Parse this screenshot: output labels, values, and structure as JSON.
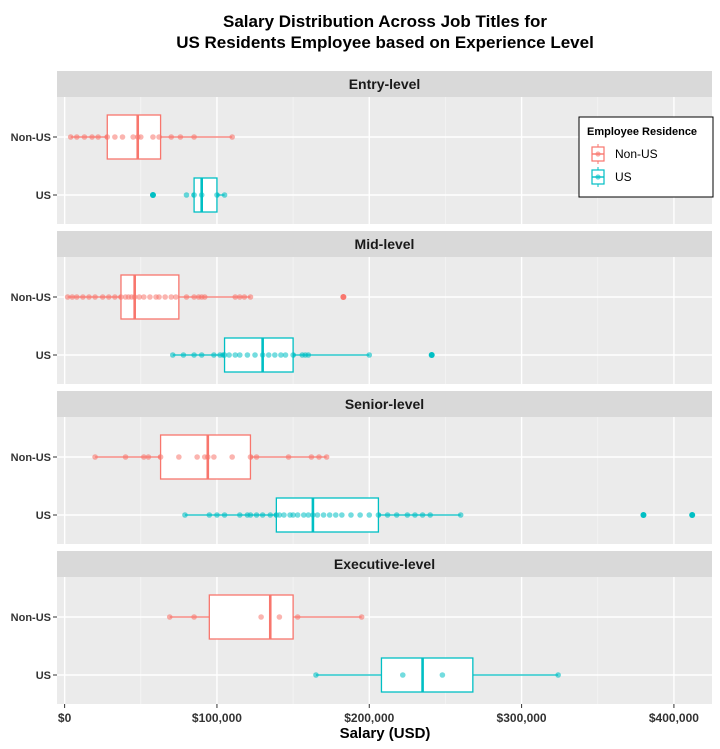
{
  "chart_data": {
    "type": "boxplot",
    "title": [
      "Salary Distribution Across Job Titles for",
      "US Residents Employee based on Experience Level"
    ],
    "xlabel": "Salary (USD)",
    "xlim": [
      -5000,
      425000
    ],
    "x_ticks": [
      0,
      100000,
      200000,
      300000,
      400000
    ],
    "x_tick_labels": [
      "$0",
      "$100,000",
      "$200,000",
      "$300,000",
      "$400,000"
    ],
    "categories": [
      "Non-US",
      "US"
    ],
    "grid": true,
    "legend": {
      "title": "Employee Residence",
      "position": "top-right",
      "entries": [
        "Non-US",
        "US"
      ]
    },
    "colors": {
      "Non-US": "#f8766d",
      "US": "#00bfc4"
    },
    "panels": [
      {
        "name": "Entry-level",
        "groups": [
          {
            "name": "Non-US",
            "whisker_low": 4000,
            "q1": 28000,
            "median": 48000,
            "q3": 63000,
            "whisker_high": 110000,
            "outliers": [],
            "points": [
              4000,
              8000,
              13000,
              18000,
              22000,
              28000,
              33000,
              38000,
              45000,
              48000,
              50000,
              58000,
              62000,
              70000,
              76000,
              85000,
              110000
            ]
          },
          {
            "name": "US",
            "whisker_low": 85000,
            "q1": 85000,
            "median": 90000,
            "q3": 100000,
            "whisker_high": 105000,
            "outliers": [
              58000
            ],
            "points": [
              58000,
              80000,
              85000,
              90000,
              100000,
              105000
            ]
          }
        ]
      },
      {
        "name": "Mid-level",
        "groups": [
          {
            "name": "Non-US",
            "whisker_low": 2000,
            "q1": 37000,
            "median": 46000,
            "q3": 75000,
            "whisker_high": 122000,
            "outliers": [
              183000
            ],
            "points": [
              2000,
              5000,
              8000,
              12000,
              16000,
              20000,
              25000,
              29000,
              33000,
              37000,
              40000,
              42000,
              44000,
              46000,
              49000,
              52000,
              56000,
              60000,
              62000,
              66000,
              70000,
              73000,
              80000,
              85000,
              88000,
              90000,
              92000,
              112000,
              115000,
              118000,
              122000,
              183000
            ]
          },
          {
            "name": "US",
            "whisker_low": 71000,
            "q1": 105000,
            "median": 130000,
            "q3": 150000,
            "whisker_high": 200000,
            "outliers": [
              241000
            ],
            "points": [
              71000,
              78000,
              85000,
              90000,
              98000,
              102000,
              104000,
              105000,
              108000,
              112000,
              115000,
              120000,
              125000,
              130000,
              134000,
              138000,
              142000,
              145000,
              150000,
              156000,
              158000,
              160000,
              200000,
              241000
            ]
          }
        ]
      },
      {
        "name": "Senior-level",
        "groups": [
          {
            "name": "Non-US",
            "whisker_low": 20000,
            "q1": 63000,
            "median": 94000,
            "q3": 122000,
            "whisker_high": 172000,
            "outliers": [],
            "points": [
              20000,
              40000,
              52000,
              55000,
              63000,
              75000,
              87000,
              92000,
              94000,
              98000,
              110000,
              122000,
              126000,
              147000,
              162000,
              167000,
              172000
            ]
          },
          {
            "name": "US",
            "whisker_low": 79000,
            "q1": 139000,
            "median": 163000,
            "q3": 206000,
            "whisker_high": 260000,
            "outliers": [
              380000,
              412000
            ],
            "points": [
              79000,
              95000,
              100000,
              105000,
              115000,
              120000,
              122000,
              126000,
              130000,
              135000,
              139000,
              141000,
              144000,
              148000,
              150000,
              153000,
              157000,
              160000,
              163000,
              166000,
              170000,
              174000,
              178000,
              182000,
              188000,
              194000,
              200000,
              206000,
              212000,
              218000,
              225000,
              230000,
              235000,
              240000,
              260000,
              380000,
              412000
            ]
          }
        ]
      },
      {
        "name": "Executive-level",
        "groups": [
          {
            "name": "Non-US",
            "whisker_low": 69000,
            "q1": 95000,
            "median": 135000,
            "q3": 150000,
            "whisker_high": 195000,
            "outliers": [],
            "points": [
              69000,
              85000,
              129000,
              141000,
              153000,
              195000
            ]
          },
          {
            "name": "US",
            "whisker_low": 165000,
            "q1": 208000,
            "median": 235000,
            "q3": 268000,
            "whisker_high": 324000,
            "outliers": [],
            "points": [
              165000,
              222000,
              248000,
              324000
            ]
          }
        ]
      }
    ]
  }
}
